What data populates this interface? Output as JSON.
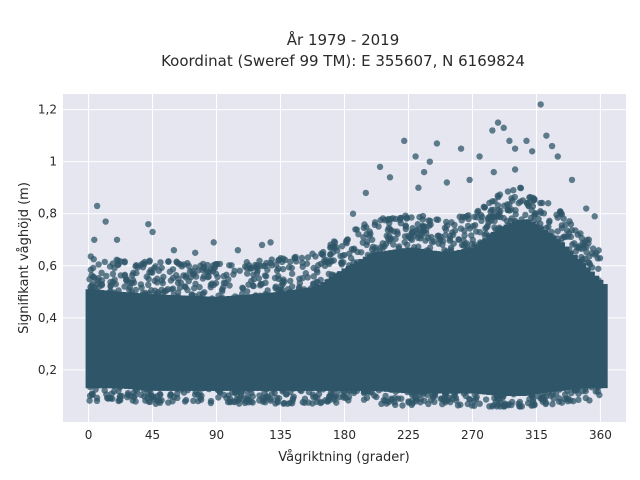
{
  "chart_data": {
    "type": "scatter",
    "title_lines": [
      "År 1979 - 2019",
      "Koordinat (Sweref 99 TM): E 355607, N 6169824"
    ],
    "xlabel": "Vågriktning (grader)",
    "ylabel": "Signifikant våghöjd (m)",
    "xlim": [
      -18,
      378
    ],
    "ylim": [
      0,
      1.26
    ],
    "x_ticks": [
      0,
      45,
      90,
      135,
      180,
      225,
      270,
      315,
      360
    ],
    "x_tick_labels": [
      "0",
      "45",
      "90",
      "135",
      "180",
      "225",
      "270",
      "315",
      "360"
    ],
    "y_ticks": [
      0.2,
      0.4,
      0.6,
      0.8,
      1.0,
      1.2
    ],
    "y_tick_labels": [
      "0,2",
      "0,4",
      "0,6",
      "0,8",
      "1",
      "1,2"
    ],
    "grid": true,
    "marker_color": "#2f5568",
    "background_color": "#e5e6f0",
    "envelope": [
      {
        "x": 0,
        "min": 0.1,
        "max": 0.56
      },
      {
        "x": 20,
        "min": 0.1,
        "max": 0.55
      },
      {
        "x": 45,
        "min": 0.09,
        "max": 0.54
      },
      {
        "x": 90,
        "min": 0.09,
        "max": 0.53
      },
      {
        "x": 135,
        "min": 0.09,
        "max": 0.55
      },
      {
        "x": 160,
        "min": 0.09,
        "max": 0.57
      },
      {
        "x": 180,
        "min": 0.09,
        "max": 0.64
      },
      {
        "x": 200,
        "min": 0.09,
        "max": 0.7
      },
      {
        "x": 225,
        "min": 0.08,
        "max": 0.72
      },
      {
        "x": 250,
        "min": 0.08,
        "max": 0.7
      },
      {
        "x": 270,
        "min": 0.08,
        "max": 0.72
      },
      {
        "x": 290,
        "min": 0.07,
        "max": 0.8
      },
      {
        "x": 305,
        "min": 0.07,
        "max": 0.83
      },
      {
        "x": 315,
        "min": 0.08,
        "max": 0.8
      },
      {
        "x": 330,
        "min": 0.09,
        "max": 0.74
      },
      {
        "x": 345,
        "min": 0.1,
        "max": 0.66
      },
      {
        "x": 360,
        "min": 0.1,
        "max": 0.58
      }
    ],
    "outliers": [
      {
        "x": 6,
        "y": 0.83
      },
      {
        "x": 12,
        "y": 0.77
      },
      {
        "x": 4,
        "y": 0.7
      },
      {
        "x": 20,
        "y": 0.7
      },
      {
        "x": 42,
        "y": 0.76
      },
      {
        "x": 45,
        "y": 0.73
      },
      {
        "x": 60,
        "y": 0.66
      },
      {
        "x": 75,
        "y": 0.65
      },
      {
        "x": 88,
        "y": 0.69
      },
      {
        "x": 105,
        "y": 0.66
      },
      {
        "x": 122,
        "y": 0.68
      },
      {
        "x": 128,
        "y": 0.69
      },
      {
        "x": 150,
        "y": 0.63
      },
      {
        "x": 170,
        "y": 0.67
      },
      {
        "x": 186,
        "y": 0.8
      },
      {
        "x": 195,
        "y": 0.88
      },
      {
        "x": 205,
        "y": 0.98
      },
      {
        "x": 212,
        "y": 0.94
      },
      {
        "x": 222,
        "y": 1.08
      },
      {
        "x": 230,
        "y": 1.02
      },
      {
        "x": 236,
        "y": 0.96
      },
      {
        "x": 240,
        "y": 1.0
      },
      {
        "x": 245,
        "y": 1.07
      },
      {
        "x": 252,
        "y": 0.92
      },
      {
        "x": 262,
        "y": 1.05
      },
      {
        "x": 275,
        "y": 1.02
      },
      {
        "x": 284,
        "y": 1.12
      },
      {
        "x": 288,
        "y": 1.15
      },
      {
        "x": 292,
        "y": 1.13
      },
      {
        "x": 296,
        "y": 1.08
      },
      {
        "x": 300,
        "y": 1.05
      },
      {
        "x": 308,
        "y": 1.08
      },
      {
        "x": 312,
        "y": 1.04
      },
      {
        "x": 318,
        "y": 1.22
      },
      {
        "x": 322,
        "y": 1.1
      },
      {
        "x": 326,
        "y": 1.06
      },
      {
        "x": 330,
        "y": 1.02
      },
      {
        "x": 340,
        "y": 0.93
      },
      {
        "x": 350,
        "y": 0.82
      },
      {
        "x": 356,
        "y": 0.79
      },
      {
        "x": 300,
        "y": 0.97
      },
      {
        "x": 285,
        "y": 0.96
      },
      {
        "x": 268,
        "y": 0.93
      },
      {
        "x": 232,
        "y": 0.9
      }
    ]
  }
}
